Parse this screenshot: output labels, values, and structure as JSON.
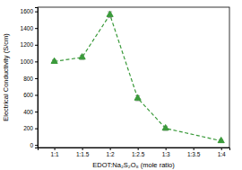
{
  "chart_data": {
    "type": "line",
    "x_label": "EDOT:Na₂S₂O₈ (mole ratio)",
    "y_label": "Electrical Conductivity (S/cm)",
    "x": [
      1,
      1.5,
      2,
      2.5,
      3,
      4
    ],
    "values": [
      1000,
      1050,
      1560,
      560,
      200,
      50
    ],
    "errors": [
      20,
      25,
      35,
      30,
      25,
      15
    ],
    "color": "#3a9a3a",
    "marker": "triangle",
    "line_style": "dashed",
    "grid": false,
    "xlim": [
      0.7,
      4.15
    ],
    "xticks": [
      {
        "value": 1,
        "label": "1:1"
      },
      {
        "value": 1.5,
        "label": "1:1.5"
      },
      {
        "value": 2,
        "label": "1:2"
      },
      {
        "value": 2.5,
        "label": "1:2.5"
      },
      {
        "value": 3,
        "label": "1:3"
      },
      {
        "value": 3.5,
        "label": "1:3.5"
      },
      {
        "value": 4,
        "label": "1:4"
      }
    ],
    "ylim": [
      -30,
      1650
    ],
    "yticks": [
      0,
      200,
      400,
      600,
      800,
      1000,
      1200,
      1400,
      1600
    ]
  }
}
